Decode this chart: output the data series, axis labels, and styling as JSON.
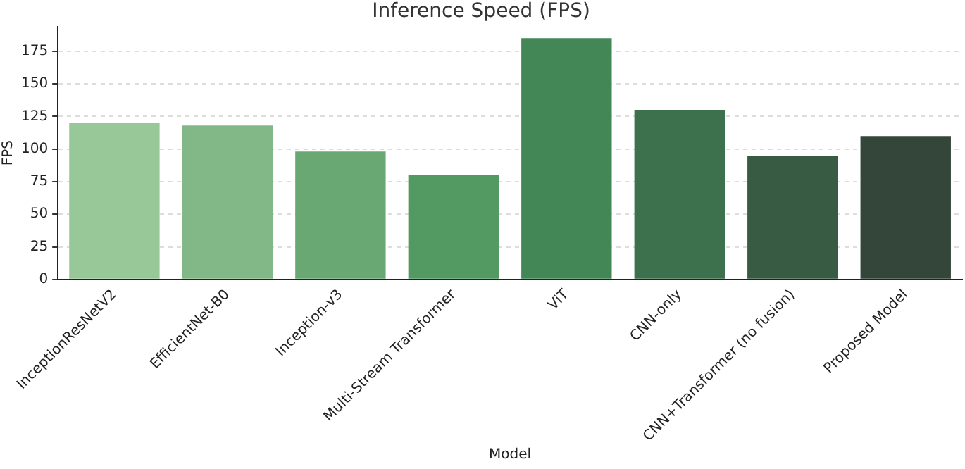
{
  "chart_data": {
    "type": "bar",
    "title": "Inference Speed (FPS)",
    "xlabel": "Model",
    "ylabel": "FPS",
    "categories": [
      "InceptionResNetV2",
      "EfficientNet-B0",
      "Inception-v3",
      "Multi-Stream Transformer",
      "ViT",
      "CNN-only",
      "CNN+Transformer (no fusion)",
      "Proposed Model"
    ],
    "values": [
      120,
      118,
      98,
      80,
      185,
      130,
      95,
      110
    ],
    "colors": [
      "#98c898",
      "#82b887",
      "#69a873",
      "#529a62",
      "#428755",
      "#3d704c",
      "#385b43",
      "#34453a"
    ],
    "ylim": [
      0,
      194
    ],
    "yticks": [
      0,
      25,
      50,
      75,
      100,
      125,
      150,
      175
    ],
    "grid": "y",
    "legend": false
  }
}
